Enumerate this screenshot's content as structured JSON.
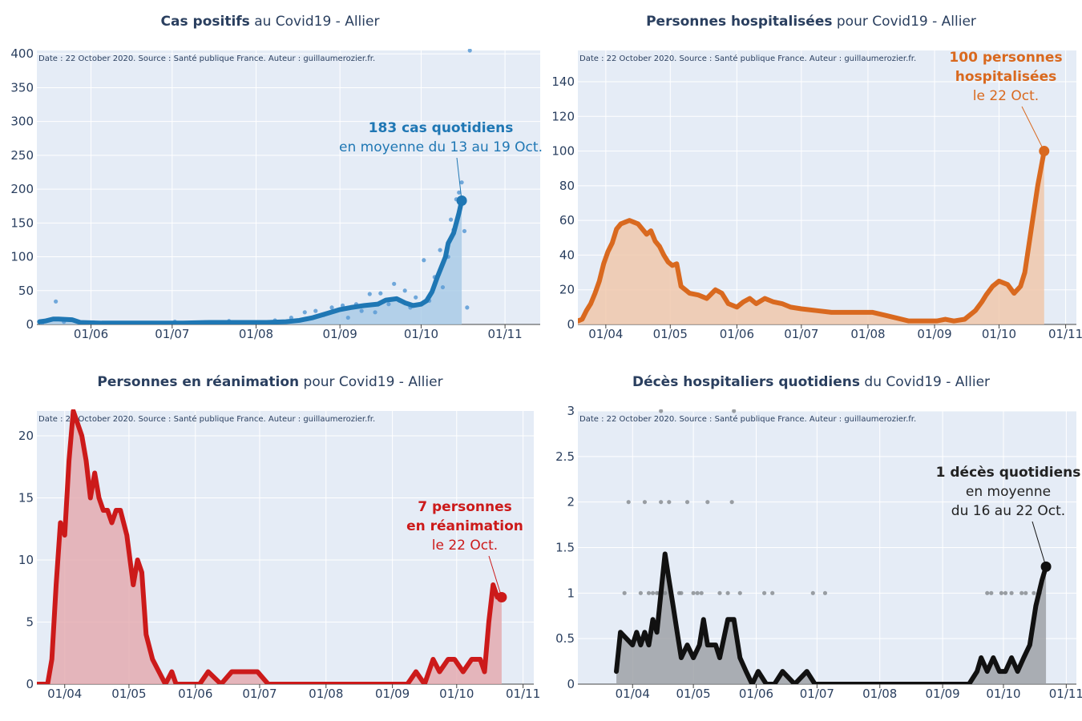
{
  "source_note": "Date : 22 October 2020. Source : Santé publique France. Auteur : guillaumerozier.fr.",
  "colors": {
    "plot_bg": "#e5ecf6",
    "grid": "#ffffff",
    "axis_text": "#2a3f5f"
  },
  "chart_data": [
    {
      "id": "cases",
      "type": "line",
      "title_bold": "Cas positifs",
      "title_rest": " au Covid19 - Allier",
      "color": "#1f77b4",
      "fill": "#a6c9e6",
      "xlim": [
        "2020-05-12",
        "2020-11-14"
      ],
      "ylim": [
        0,
        405
      ],
      "x_ticks": [
        {
          "date": "2020-06-01",
          "label": "01/06"
        },
        {
          "date": "2020-07-01",
          "label": "01/07"
        },
        {
          "date": "2020-08-01",
          "label": "01/08"
        },
        {
          "date": "2020-09-01",
          "label": "01/09"
        },
        {
          "date": "2020-10-01",
          "label": "01/10"
        },
        {
          "date": "2020-11-01",
          "label": "01/11"
        }
      ],
      "y_ticks": [
        0,
        50,
        100,
        150,
        200,
        250,
        300,
        350,
        400
      ],
      "series": [
        {
          "kind": "line",
          "x": [
            "2020-05-13",
            "2020-05-15",
            "2020-05-18",
            "2020-05-20",
            "2020-05-25",
            "2020-05-28",
            "2020-06-05",
            "2020-06-15",
            "2020-06-25",
            "2020-07-05",
            "2020-07-15",
            "2020-07-25",
            "2020-08-05",
            "2020-08-12",
            "2020-08-17",
            "2020-08-22",
            "2020-08-27",
            "2020-09-01",
            "2020-09-05",
            "2020-09-10",
            "2020-09-15",
            "2020-09-18",
            "2020-09-22",
            "2020-09-25",
            "2020-09-28",
            "2020-10-01",
            "2020-10-03",
            "2020-10-05",
            "2020-10-07",
            "2020-10-09",
            "2020-10-10",
            "2020-10-11",
            "2020-10-13",
            "2020-10-14",
            "2020-10-15",
            "2020-10-16"
          ],
          "values": [
            4,
            5,
            8,
            8,
            7,
            3,
            2,
            2,
            2,
            2,
            3,
            3,
            3,
            4,
            6,
            10,
            16,
            22,
            25,
            28,
            30,
            36,
            38,
            32,
            28,
            30,
            35,
            48,
            70,
            90,
            100,
            120,
            135,
            150,
            165,
            183
          ]
        },
        {
          "kind": "dots",
          "x": [
            "2020-05-14",
            "2020-05-19",
            "2020-05-22",
            "2020-05-26",
            "2020-06-02",
            "2020-06-10",
            "2020-06-20",
            "2020-07-02",
            "2020-07-14",
            "2020-07-22",
            "2020-07-30",
            "2020-08-08",
            "2020-08-14",
            "2020-08-19",
            "2020-08-23",
            "2020-08-26",
            "2020-08-29",
            "2020-09-02",
            "2020-09-04",
            "2020-09-07",
            "2020-09-09",
            "2020-09-12",
            "2020-09-14",
            "2020-09-16",
            "2020-09-19",
            "2020-09-21",
            "2020-09-23",
            "2020-09-25",
            "2020-09-27",
            "2020-09-29",
            "2020-10-02",
            "2020-10-04",
            "2020-10-06",
            "2020-10-08",
            "2020-10-09",
            "2020-10-11",
            "2020-10-12",
            "2020-10-13",
            "2020-10-14",
            "2020-10-15",
            "2020-10-16",
            "2020-10-17",
            "2020-10-18",
            "2020-10-19"
          ],
          "values": [
            2,
            34,
            4,
            6,
            3,
            2,
            1,
            4,
            2,
            5,
            3,
            6,
            10,
            18,
            20,
            14,
            25,
            28,
            10,
            30,
            20,
            45,
            18,
            46,
            30,
            60,
            35,
            50,
            25,
            40,
            95,
            35,
            70,
            110,
            55,
            100,
            155,
            140,
            185,
            195,
            210,
            138,
            25,
            405
          ]
        }
      ],
      "annotation": {
        "lines": [
          "183 cas quotidiens",
          "en moyenne du 13 au 19 Oct."
        ],
        "bold_lines": 1,
        "x": "2020-10-16",
        "y": 183
      }
    },
    {
      "id": "hosp",
      "type": "line",
      "title_bold": "Personnes hospitalisées",
      "title_rest": " pour Covid19 - Allier",
      "color": "#d9691f",
      "fill": "#f0c6a8",
      "xlim": [
        "2020-03-19",
        "2020-11-06"
      ],
      "ylim": [
        0,
        158
      ],
      "x_ticks": [
        {
          "date": "2020-04-01",
          "label": "01/04"
        },
        {
          "date": "2020-05-01",
          "label": "01/05"
        },
        {
          "date": "2020-06-01",
          "label": "01/06"
        },
        {
          "date": "2020-07-01",
          "label": "01/07"
        },
        {
          "date": "2020-08-01",
          "label": "01/08"
        },
        {
          "date": "2020-09-01",
          "label": "01/09"
        },
        {
          "date": "2020-10-01",
          "label": "01/10"
        },
        {
          "date": "2020-11-01",
          "label": "01/11"
        }
      ],
      "y_ticks": [
        0,
        20,
        40,
        60,
        80,
        100,
        120,
        140
      ],
      "series": [
        {
          "kind": "line",
          "x": [
            "2020-03-19",
            "2020-03-21",
            "2020-03-23",
            "2020-03-25",
            "2020-03-27",
            "2020-03-29",
            "2020-03-31",
            "2020-04-02",
            "2020-04-04",
            "2020-04-06",
            "2020-04-08",
            "2020-04-10",
            "2020-04-12",
            "2020-04-14",
            "2020-04-16",
            "2020-04-18",
            "2020-04-20",
            "2020-04-22",
            "2020-04-24",
            "2020-04-26",
            "2020-04-28",
            "2020-04-30",
            "2020-05-02",
            "2020-05-04",
            "2020-05-06",
            "2020-05-08",
            "2020-05-10",
            "2020-05-14",
            "2020-05-18",
            "2020-05-22",
            "2020-05-25",
            "2020-05-28",
            "2020-06-01",
            "2020-06-04",
            "2020-06-07",
            "2020-06-10",
            "2020-06-14",
            "2020-06-18",
            "2020-06-22",
            "2020-06-26",
            "2020-07-01",
            "2020-07-08",
            "2020-07-15",
            "2020-07-22",
            "2020-07-28",
            "2020-08-03",
            "2020-08-10",
            "2020-08-20",
            "2020-08-30",
            "2020-09-02",
            "2020-09-06",
            "2020-09-10",
            "2020-09-15",
            "2020-09-20",
            "2020-09-23",
            "2020-09-25",
            "2020-09-28",
            "2020-10-01",
            "2020-10-03",
            "2020-10-05",
            "2020-10-08",
            "2020-10-11",
            "2020-10-13",
            "2020-10-16",
            "2020-10-19",
            "2020-10-22"
          ],
          "values": [
            2,
            3,
            8,
            12,
            18,
            25,
            35,
            42,
            47,
            55,
            58,
            59,
            60,
            59,
            58,
            55,
            52,
            54,
            48,
            45,
            40,
            36,
            34,
            35,
            22,
            20,
            18,
            17,
            15,
            20,
            18,
            12,
            10,
            13,
            15,
            12,
            15,
            13,
            12,
            10,
            9,
            8,
            7,
            7,
            7,
            7,
            5,
            2,
            2,
            2,
            3,
            2,
            3,
            8,
            13,
            17,
            22,
            25,
            24,
            23,
            18,
            22,
            30,
            55,
            80,
            100
          ]
        }
      ],
      "annotation": {
        "lines": [
          "100 personnes",
          "hospitalisées",
          "le 22 Oct."
        ],
        "bold_lines": 2,
        "x": "2020-10-22",
        "y": 100
      }
    },
    {
      "id": "rea",
      "type": "line",
      "title_bold": "Personnes en réanimation",
      "title_rest": " pour Covid19 - Allier",
      "color": "#cc1a1a",
      "fill": "#e3a7ac",
      "xlim": [
        "2020-03-19",
        "2020-11-06"
      ],
      "ylim": [
        0,
        22
      ],
      "x_ticks": [
        {
          "date": "2020-04-01",
          "label": "01/04"
        },
        {
          "date": "2020-05-01",
          "label": "01/05"
        },
        {
          "date": "2020-06-01",
          "label": "01/06"
        },
        {
          "date": "2020-07-01",
          "label": "01/07"
        },
        {
          "date": "2020-08-01",
          "label": "01/08"
        },
        {
          "date": "2020-09-01",
          "label": "01/09"
        },
        {
          "date": "2020-10-01",
          "label": "01/10"
        },
        {
          "date": "2020-11-01",
          "label": "01/11"
        }
      ],
      "y_ticks": [
        0,
        5,
        10,
        15,
        20
      ],
      "series": [
        {
          "kind": "line",
          "x": [
            "2020-03-19",
            "2020-03-24",
            "2020-03-26",
            "2020-03-28",
            "2020-03-30",
            "2020-04-01",
            "2020-04-03",
            "2020-04-05",
            "2020-04-07",
            "2020-04-09",
            "2020-04-11",
            "2020-04-13",
            "2020-04-15",
            "2020-04-17",
            "2020-04-19",
            "2020-04-21",
            "2020-04-23",
            "2020-04-25",
            "2020-04-27",
            "2020-04-30",
            "2020-05-03",
            "2020-05-05",
            "2020-05-07",
            "2020-05-09",
            "2020-05-12",
            "2020-05-15",
            "2020-05-18",
            "2020-05-21",
            "2020-05-23",
            "2020-05-27",
            "2020-06-03",
            "2020-06-07",
            "2020-06-13",
            "2020-06-18",
            "2020-06-30",
            "2020-07-05",
            "2020-08-15",
            "2020-09-01",
            "2020-09-08",
            "2020-09-12",
            "2020-09-16",
            "2020-09-20",
            "2020-09-23",
            "2020-09-27",
            "2020-09-30",
            "2020-10-04",
            "2020-10-08",
            "2020-10-12",
            "2020-10-14",
            "2020-10-16",
            "2020-10-18",
            "2020-10-20",
            "2020-10-22"
          ],
          "values": [
            0,
            0,
            2,
            8,
            13,
            12,
            18,
            22,
            21,
            20,
            18,
            15,
            17,
            15,
            14,
            14,
            13,
            14,
            14,
            12,
            8,
            10,
            9,
            4,
            2,
            1,
            0,
            1,
            0,
            0,
            0,
            1,
            0,
            1,
            1,
            0,
            0,
            0,
            0,
            1,
            0,
            2,
            1,
            2,
            2,
            1,
            2,
            2,
            1,
            5,
            8,
            7,
            7
          ]
        }
      ],
      "annotation": {
        "lines": [
          "7 personnes",
          "en réanimation",
          "le 22 Oct."
        ],
        "bold_lines": 2,
        "x": "2020-10-22",
        "y": 7
      }
    },
    {
      "id": "deces",
      "type": "line",
      "title_bold": "Décès hospitaliers quotidiens",
      "title_rest": " du Covid19 - Allier",
      "color": "#111111",
      "fill": "#9a9ea3",
      "xlim": [
        "2020-03-05",
        "2020-11-06"
      ],
      "ylim": [
        0,
        3
      ],
      "x_ticks": [
        {
          "date": "2020-04-01",
          "label": "01/04"
        },
        {
          "date": "2020-05-01",
          "label": "01/05"
        },
        {
          "date": "2020-06-01",
          "label": "01/06"
        },
        {
          "date": "2020-07-01",
          "label": "01/07"
        },
        {
          "date": "2020-08-01",
          "label": "01/08"
        },
        {
          "date": "2020-09-01",
          "label": "01/09"
        },
        {
          "date": "2020-10-01",
          "label": "01/10"
        },
        {
          "date": "2020-11-01",
          "label": "01/11"
        }
      ],
      "y_ticks": [
        0,
        0.5,
        1,
        1.5,
        2,
        2.5,
        3
      ],
      "series": [
        {
          "kind": "line",
          "x": [
            "2020-03-24",
            "2020-03-26",
            "2020-04-01",
            "2020-04-03",
            "2020-04-05",
            "2020-04-07",
            "2020-04-09",
            "2020-04-11",
            "2020-04-13",
            "2020-04-15",
            "2020-04-17",
            "2020-04-19",
            "2020-04-21",
            "2020-04-23",
            "2020-04-25",
            "2020-04-28",
            "2020-05-01",
            "2020-05-04",
            "2020-05-06",
            "2020-05-08",
            "2020-05-12",
            "2020-05-14",
            "2020-05-18",
            "2020-05-21",
            "2020-05-24",
            "2020-05-27",
            "2020-05-30",
            "2020-06-02",
            "2020-06-06",
            "2020-06-10",
            "2020-06-14",
            "2020-06-20",
            "2020-06-26",
            "2020-06-30",
            "2020-07-04",
            "2020-08-01",
            "2020-09-14",
            "2020-09-18",
            "2020-09-20",
            "2020-09-23",
            "2020-09-26",
            "2020-09-29",
            "2020-10-02",
            "2020-10-05",
            "2020-10-08",
            "2020-10-11",
            "2020-10-14",
            "2020-10-17",
            "2020-10-20",
            "2020-10-22"
          ],
          "values": [
            0.14,
            0.57,
            0.43,
            0.57,
            0.43,
            0.57,
            0.43,
            0.71,
            0.57,
            1.0,
            1.43,
            1.14,
            0.86,
            0.57,
            0.29,
            0.43,
            0.29,
            0.43,
            0.71,
            0.43,
            0.43,
            0.29,
            0.71,
            0.71,
            0.29,
            0.14,
            0.0,
            0.14,
            0.0,
            0.0,
            0.14,
            0.0,
            0.14,
            0.0,
            0.0,
            0.0,
            0.0,
            0.14,
            0.29,
            0.14,
            0.29,
            0.14,
            0.14,
            0.29,
            0.14,
            0.29,
            0.43,
            0.86,
            1.14,
            1.29
          ]
        },
        {
          "kind": "dots",
          "x": [
            "2020-03-28",
            "2020-03-30",
            "2020-04-05",
            "2020-04-07",
            "2020-04-09",
            "2020-04-13",
            "2020-04-15",
            "2020-04-17",
            "2020-04-19",
            "2020-04-24",
            "2020-04-28",
            "2020-05-03",
            "2020-05-05",
            "2020-05-08",
            "2020-05-14",
            "2020-05-20",
            "2020-06-05",
            "2020-06-09",
            "2020-06-29",
            "2020-07-05",
            "2020-09-23",
            "2020-09-25",
            "2020-09-30",
            "2020-10-02",
            "2020-10-05",
            "2020-10-10",
            "2020-10-12",
            "2020-10-16",
            "2020-10-19",
            "2020-04-11",
            "2020-04-14",
            "2020-04-17",
            "2020-04-25",
            "2020-05-01",
            "2020-05-18",
            "2020-05-24",
            "2020-04-15",
            "2020-05-21"
          ],
          "values": [
            1,
            2,
            1,
            2,
            1,
            1,
            2,
            1,
            2,
            1,
            2,
            1,
            1,
            2,
            1,
            2,
            1,
            1,
            1,
            1,
            1,
            1,
            1,
            1,
            1,
            1,
            1,
            1,
            1,
            1,
            1,
            1,
            1,
            1,
            1,
            1,
            3,
            3
          ]
        }
      ],
      "annotation": {
        "lines": [
          "1 décès quotidiens",
          "en moyenne",
          "du 16 au 22 Oct."
        ],
        "bold_lines": 1,
        "x": "2020-10-22",
        "y": 1.29
      }
    }
  ]
}
